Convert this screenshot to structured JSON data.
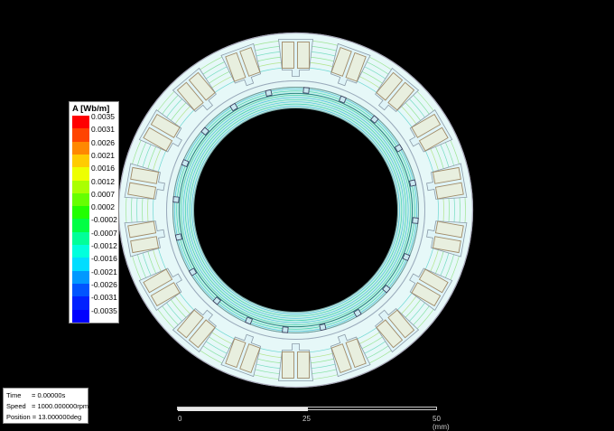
{
  "legend": {
    "title": "A [Wb/m]",
    "entries": [
      {
        "label": "0.0035",
        "color": "#ff0000"
      },
      {
        "label": "0.0031",
        "color": "#ff4400"
      },
      {
        "label": "0.0026",
        "color": "#ff8800"
      },
      {
        "label": "0.0021",
        "color": "#ffcc00"
      },
      {
        "label": "0.0016",
        "color": "#eeff00"
      },
      {
        "label": "0.0012",
        "color": "#aaff00"
      },
      {
        "label": "0.0007",
        "color": "#66ff00"
      },
      {
        "label": "0.0002",
        "color": "#22ff00"
      },
      {
        "label": "-0.0002",
        "color": "#00ff44"
      },
      {
        "label": "-0.0007",
        "color": "#00ff99"
      },
      {
        "label": "-0.0012",
        "color": "#00ffdd"
      },
      {
        "label": "-0.0016",
        "color": "#00ddff"
      },
      {
        "label": "-0.0021",
        "color": "#0099ff"
      },
      {
        "label": "-0.0026",
        "color": "#0055ff"
      },
      {
        "label": "-0.0031",
        "color": "#0022ff"
      },
      {
        "label": "-0.0035",
        "color": "#0000ff"
      }
    ]
  },
  "info": {
    "time_key": "Time",
    "time_value": "= 0.00000s",
    "speed_key": "Speed",
    "speed_value": "= 1000.000000rpm",
    "position_key": "Position",
    "position_value": "= 13.000000deg"
  },
  "scale": {
    "tick0": "0",
    "tick1": "25",
    "tick2": "50 (mm)"
  },
  "motor": {
    "slots": 18,
    "rotor_magnets": 20,
    "stator_fill": "#e6f8f8",
    "coil_fill": "#e8efdf",
    "coil_stroke": "#a08a66",
    "outline": "#8a9aa8"
  }
}
